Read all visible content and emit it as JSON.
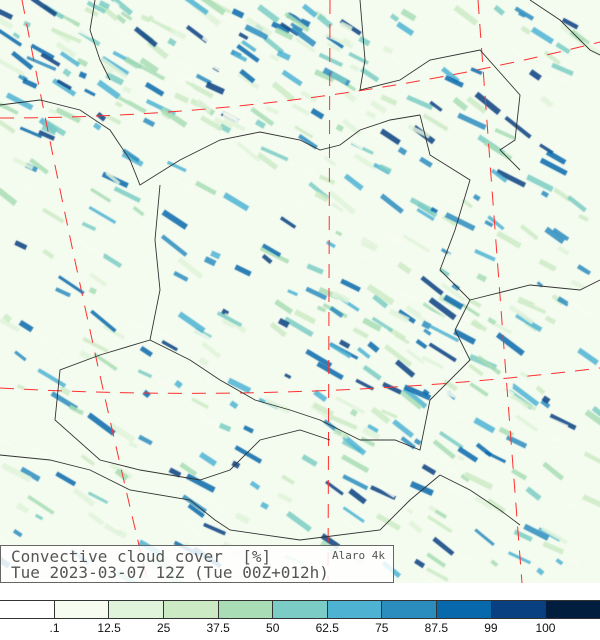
{
  "title": {
    "variable": "Convective cloud cover",
    "unit": "[%]",
    "model": "Alaro 4k",
    "time": "Tue 2023-03-07 12Z (Tue 00Z+012h)"
  },
  "legend": {
    "colors": [
      "#ffffff",
      "#f7fcf0",
      "#e0f3db",
      "#ccebc5",
      "#a8ddb5",
      "#7bccc4",
      "#4eb3d3",
      "#2b8cbe",
      "#0868ac",
      "#084081",
      "#021e3f"
    ],
    "labels": [
      ".1",
      "12.5",
      "25",
      "37.5",
      "50",
      "62.5",
      "75",
      "87.5",
      "99",
      "100"
    ]
  },
  "map": {
    "border_color": "#333333",
    "gridline_color": "#ff3030"
  }
}
